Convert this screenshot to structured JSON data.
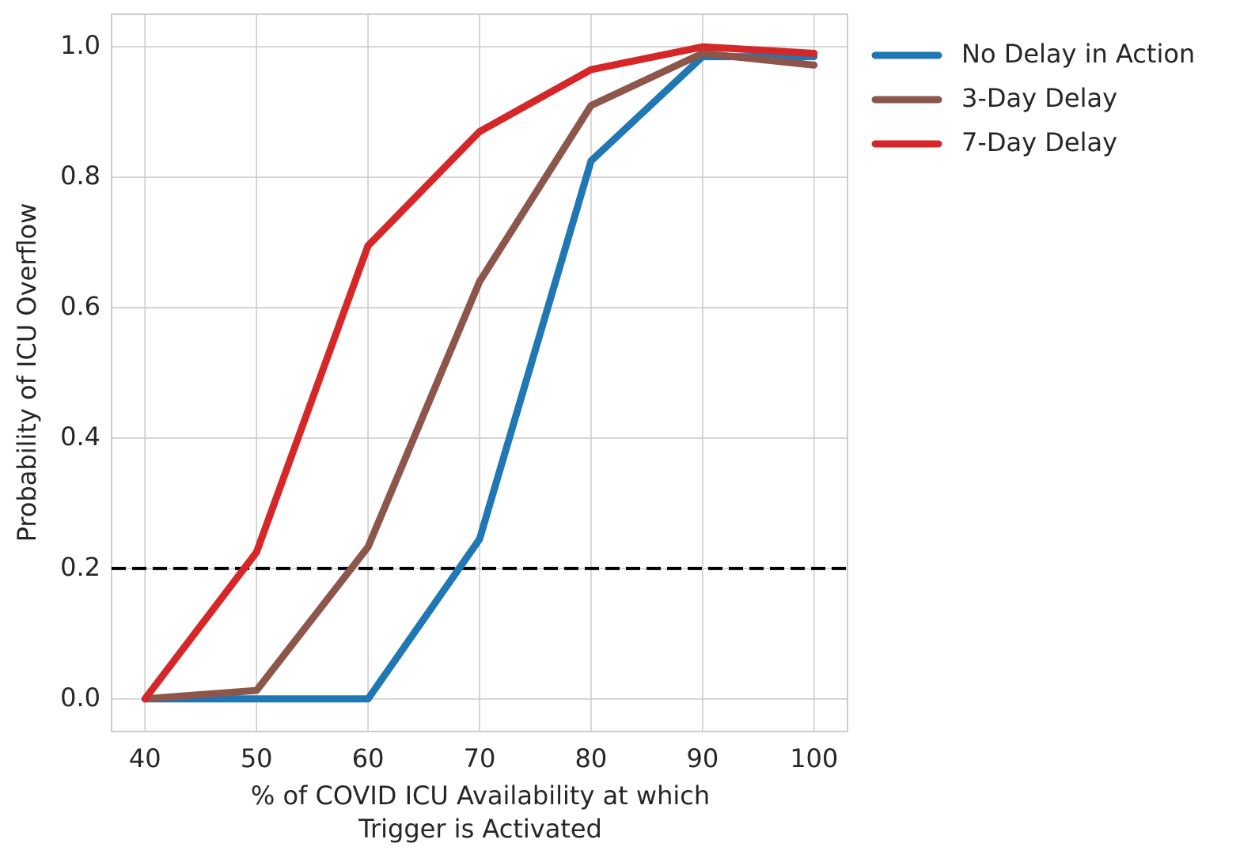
{
  "chart_data": {
    "type": "line",
    "x_label": [
      "% of COVID ICU Availability at which",
      "Trigger is Activated"
    ],
    "y_label": "Probability of ICU Overflow",
    "x": [
      40,
      50,
      60,
      70,
      80,
      90,
      100
    ],
    "series": [
      {
        "name": "No Delay in Action",
        "color": "#1f77b4",
        "values": [
          0,
          0,
          0,
          0.245,
          0.825,
          0.985,
          0.985
        ]
      },
      {
        "name": "3-Day Delay",
        "color": "#8c564b",
        "values": [
          0,
          0.013,
          0.233,
          0.64,
          0.91,
          0.99,
          0.972
        ]
      },
      {
        "name": "7-Day Delay",
        "color": "#d62728",
        "values": [
          0,
          0.225,
          0.695,
          0.87,
          0.965,
          1.0,
          0.99
        ]
      }
    ],
    "reference_line": {
      "value": 0.2,
      "color": "#000000",
      "style": "dashed"
    },
    "xlim": [
      37,
      103
    ],
    "ylim": [
      -0.05,
      1.05
    ],
    "xticks": [
      40,
      50,
      60,
      70,
      80,
      90,
      100
    ],
    "yticks": [
      {
        "value": 0,
        "label": "0.0"
      },
      0.2,
      0.4,
      0.6,
      0.8,
      {
        "value": 1,
        "label": "1.0"
      }
    ],
    "grid": true,
    "legend": "outside-right"
  }
}
